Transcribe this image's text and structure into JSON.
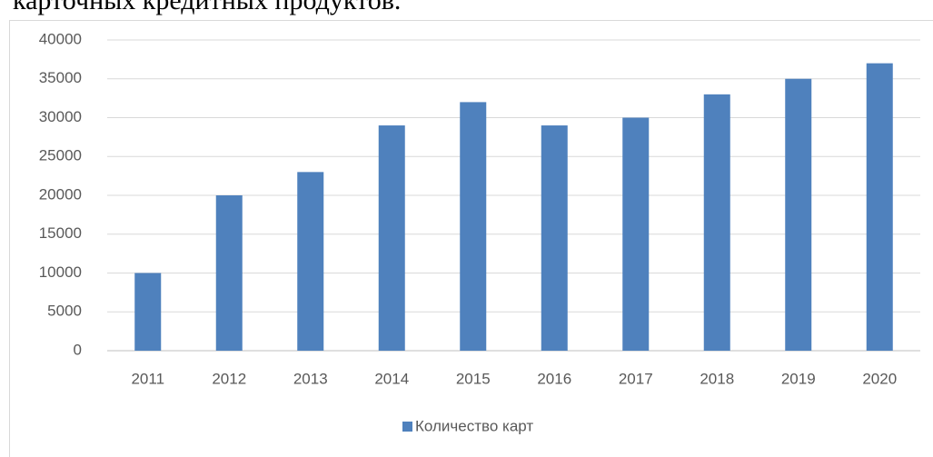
{
  "caption": "карточных кредитных продуктов.",
  "chart_data": {
    "type": "bar",
    "categories": [
      "2011",
      "2012",
      "2013",
      "2014",
      "2015",
      "2016",
      "2017",
      "2018",
      "2019",
      "2020"
    ],
    "series": [
      {
        "name": "Количество карт",
        "color": "#4f81bd",
        "values": [
          10000,
          20000,
          23000,
          29000,
          32000,
          29000,
          30000,
          33000,
          35000,
          37000
        ]
      }
    ],
    "ylim": [
      0,
      40000
    ],
    "yticks": [
      0,
      5000,
      10000,
      15000,
      20000,
      25000,
      30000,
      35000,
      40000
    ],
    "grid": true,
    "legend": "bottom"
  }
}
